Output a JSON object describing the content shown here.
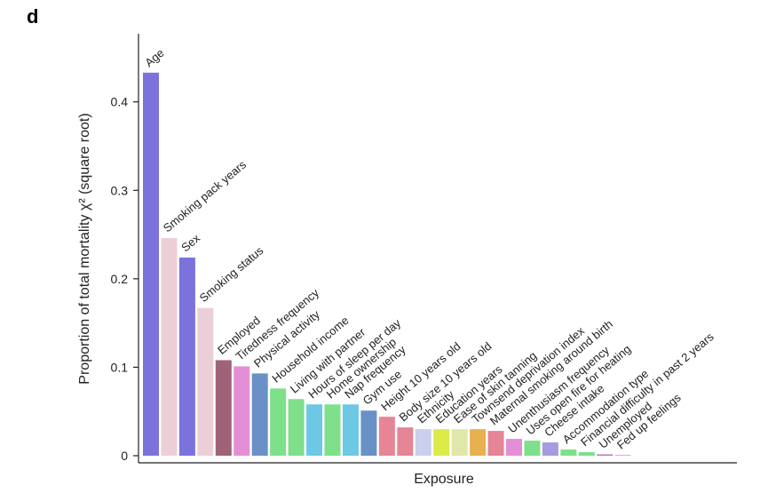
{
  "panel_label": "d",
  "chart_data": {
    "type": "bar",
    "xlabel": "Exposure",
    "ylabel": "Proportion of total mortality χ² (square root)",
    "ylim": [
      0,
      0.45
    ],
    "yticks": [
      0,
      0.1,
      0.2,
      0.3,
      0.4
    ],
    "ytick_labels": [
      "0",
      "0.1",
      "0.2",
      "0.3",
      "0.4"
    ],
    "grid": false,
    "legend": "none",
    "bars": [
      {
        "label": "Age",
        "value": 0.433,
        "color": "#7b72dc"
      },
      {
        "label": "Smoking pack years",
        "value": 0.246,
        "color": "#eccfd6"
      },
      {
        "label": "Sex",
        "value": 0.224,
        "color": "#7b72dc"
      },
      {
        "label": "Smoking status",
        "value": 0.167,
        "color": "#eccfd6"
      },
      {
        "label": "Employed",
        "value": 0.108,
        "color": "#9e6379"
      },
      {
        "label": "Tiredness frequency",
        "value": 0.101,
        "color": "#e48ed6"
      },
      {
        "label": "Physical activity",
        "value": 0.093,
        "color": "#6a90c8"
      },
      {
        "label": "Household income",
        "value": 0.076,
        "color": "#7ee08a"
      },
      {
        "label": "Living with partner",
        "value": 0.064,
        "color": "#7ee08a"
      },
      {
        "label": "Hours of sleep per day",
        "value": 0.058,
        "color": "#6dc8e6"
      },
      {
        "label": "Home ownership",
        "value": 0.058,
        "color": "#7ee08a"
      },
      {
        "label": "Nap frequency",
        "value": 0.058,
        "color": "#6dc8e6"
      },
      {
        "label": "Gym use",
        "value": 0.051,
        "color": "#6a90c8"
      },
      {
        "label": "Height 10 years old",
        "value": 0.044,
        "color": "#e58596"
      },
      {
        "label": "Body size 10 years old",
        "value": 0.032,
        "color": "#e58596"
      },
      {
        "label": "Ethnicity",
        "value": 0.03,
        "color": "#c9cfec"
      },
      {
        "label": "Education years",
        "value": 0.03,
        "color": "#dcea4a"
      },
      {
        "label": "Ease of skin tanning",
        "value": 0.03,
        "color": "#dfe8a8"
      },
      {
        "label": "Townsend deprivation index",
        "value": 0.03,
        "color": "#e8b04e"
      },
      {
        "label": "Maternal smoking around birth",
        "value": 0.028,
        "color": "#e58596"
      },
      {
        "label": "Unenthusiasm frequency",
        "value": 0.019,
        "color": "#e48ed6"
      },
      {
        "label": "Uses open fire for heating",
        "value": 0.017,
        "color": "#7ee08a"
      },
      {
        "label": "Cheese intake",
        "value": 0.015,
        "color": "#a69ae0"
      },
      {
        "label": "Accommodation type",
        "value": 0.007,
        "color": "#7ee08a"
      },
      {
        "label": "Financial difficulty in past 2 years",
        "value": 0.004,
        "color": "#7ee08a"
      },
      {
        "label": "Unemployed",
        "value": 0.0015,
        "color": "#b07ab0"
      },
      {
        "label": "Fed up feelings",
        "value": 0.0008,
        "color": "#e48ed6"
      }
    ]
  }
}
